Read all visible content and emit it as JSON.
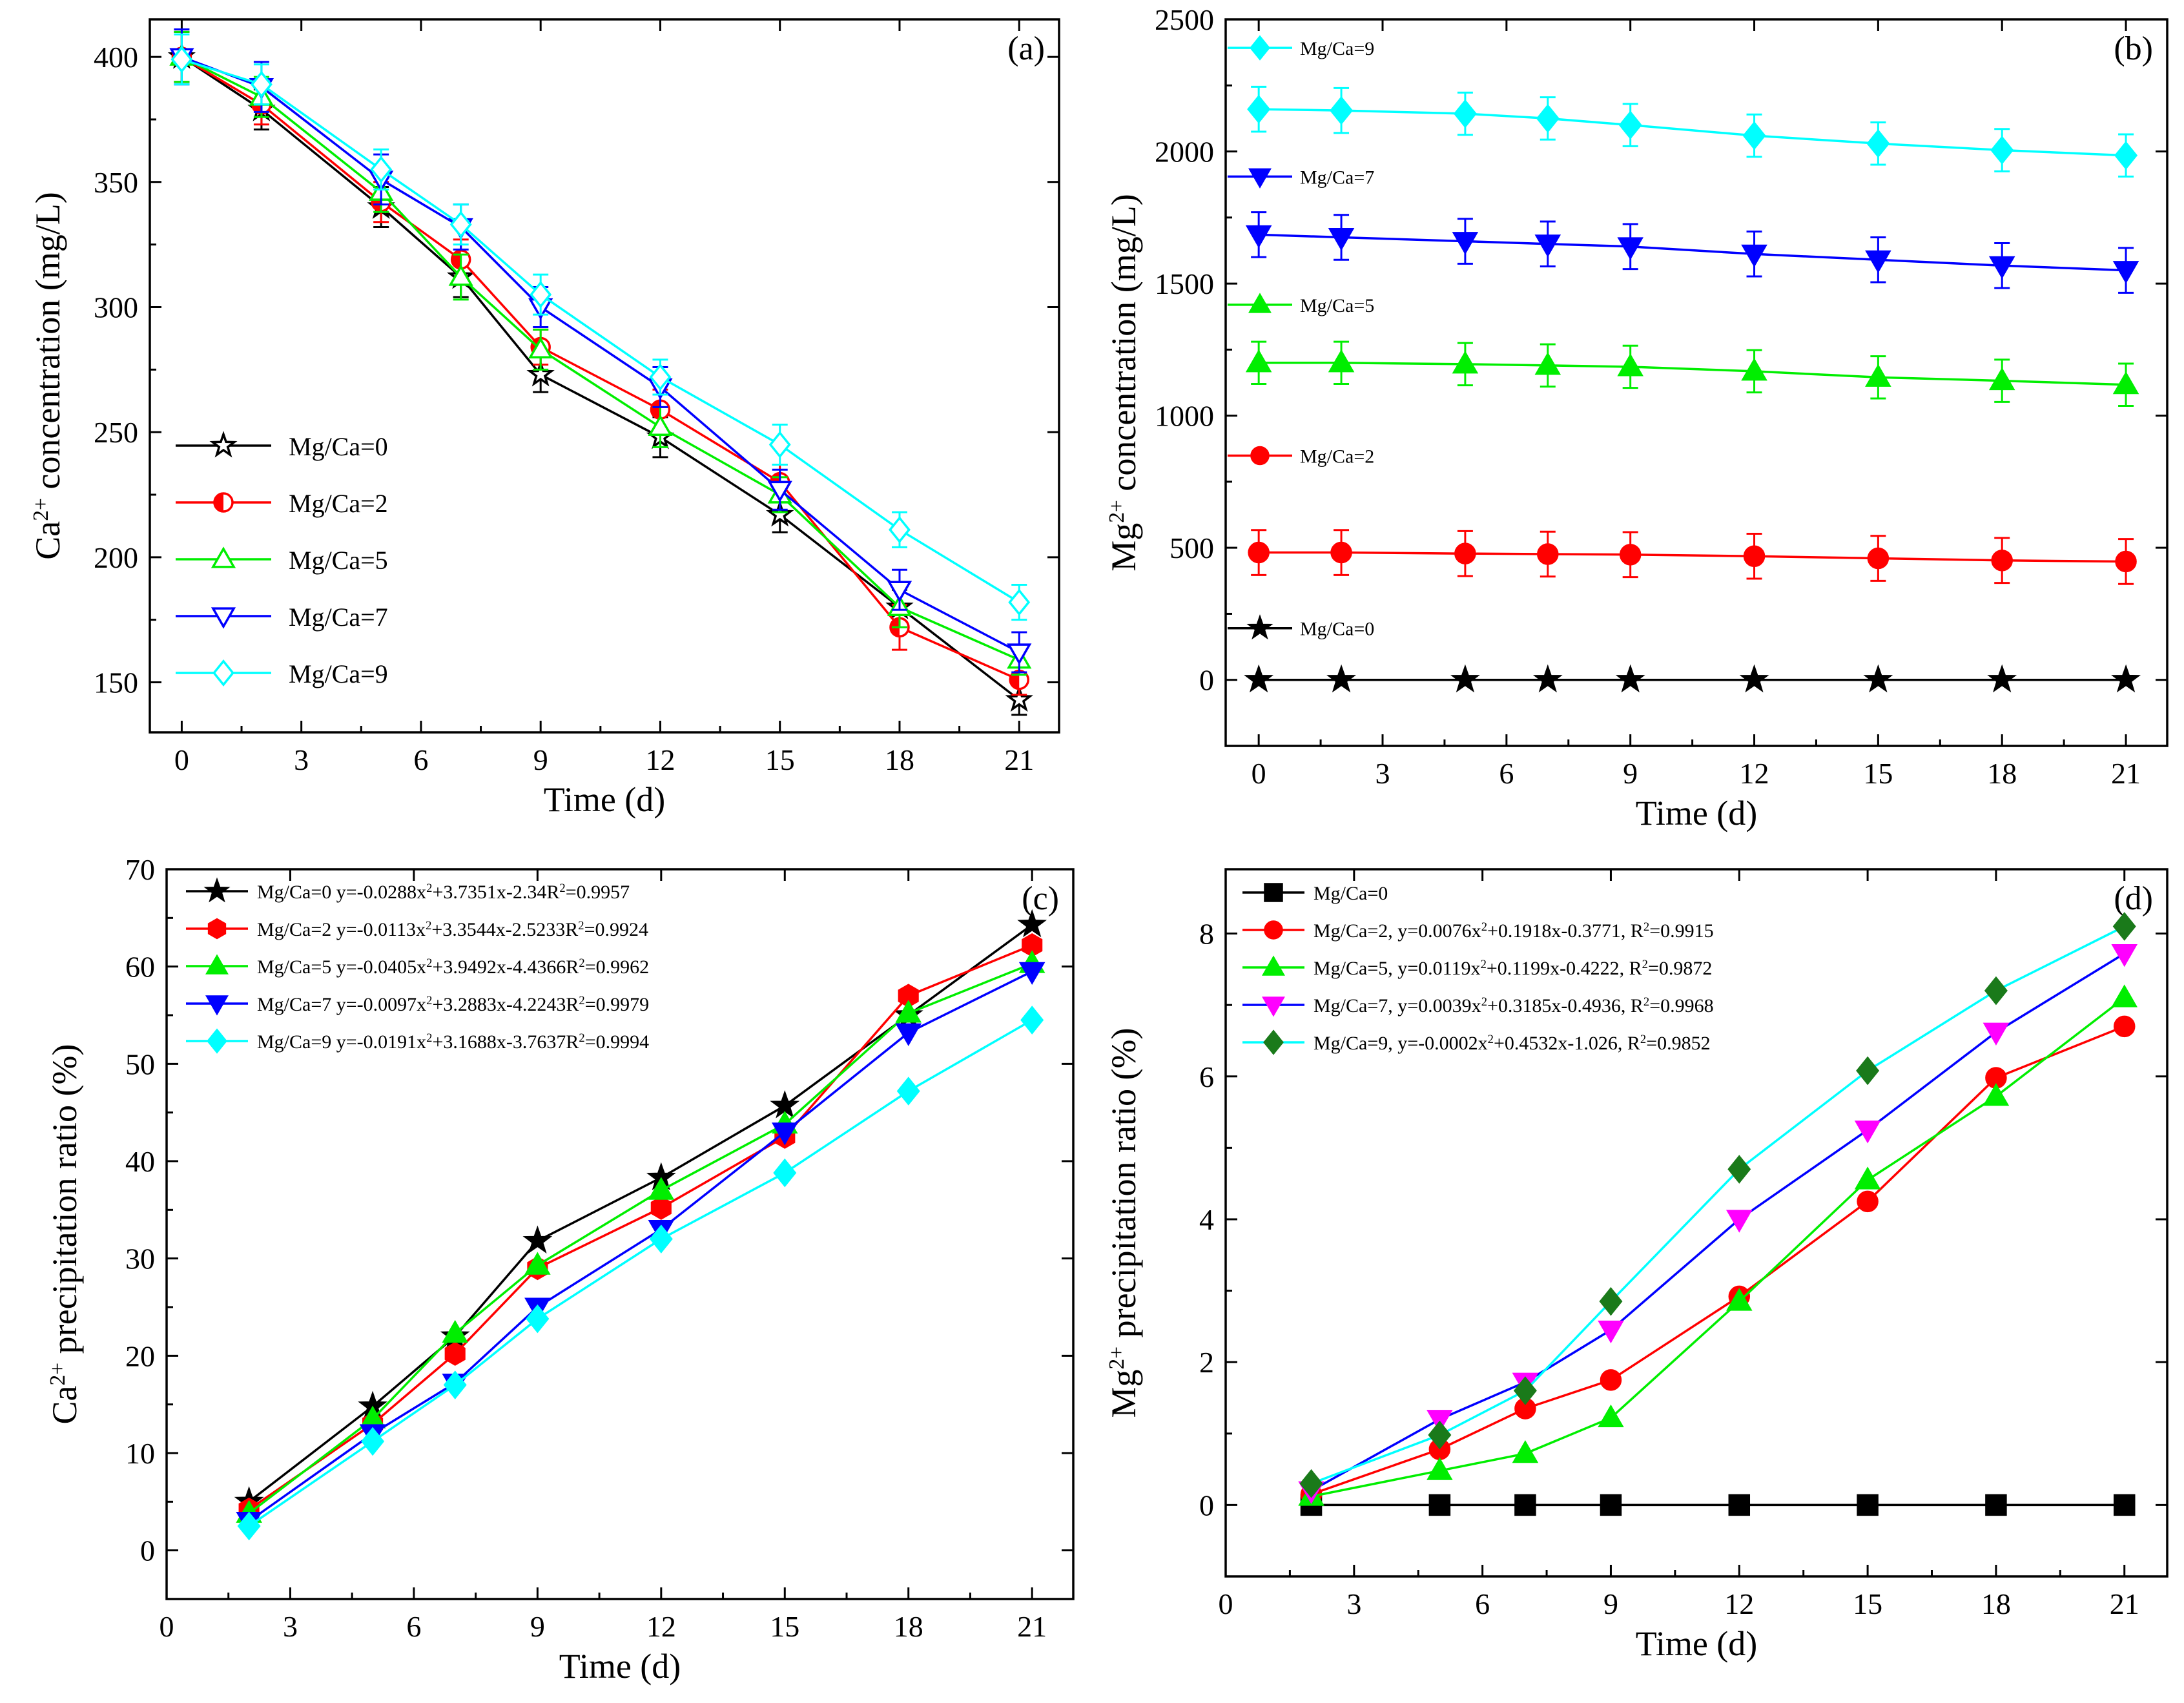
{
  "figure": {
    "colors": {
      "mg0": "#000000",
      "mg2": "#ff0000",
      "mg5": "#00ee00",
      "mg7": "#0000ff",
      "mg9": "#00ffff",
      "mg9_marker_d": "#1a7a1a",
      "mg7_marker_d": "#ff00ff"
    }
  },
  "chart_data": [
    {
      "panel": "a",
      "tag": "(a)",
      "type": "line",
      "xlabel": "Time (d)",
      "ylabel_main": "Ca",
      "ylabel_sup": "2+",
      "ylabel_rest": " concentration (mg/L)",
      "xlim": [
        -0.8,
        22
      ],
      "ylim": [
        130,
        415
      ],
      "xticks": [
        0,
        3,
        6,
        9,
        12,
        15,
        18,
        21
      ],
      "yticks": [
        150,
        200,
        250,
        300,
        350,
        400
      ],
      "legend": [
        "Mg/Ca=0",
        "Mg/Ca=2",
        "Mg/Ca=5",
        "Mg/Ca=7",
        "Mg/Ca=9"
      ],
      "x": [
        0,
        2,
        5,
        7,
        9,
        12,
        15,
        18,
        21
      ],
      "series": [
        {
          "name": "Mg/Ca=0",
          "marker": "star-open",
          "values": [
            400,
            379,
            340,
            312,
            273,
            248,
            217,
            180,
            143
          ],
          "err": [
            10,
            8,
            8,
            8,
            7,
            8,
            7,
            7,
            6
          ]
        },
        {
          "name": "Mg/Ca=2",
          "marker": "circle-half",
          "values": [
            400,
            381,
            342,
            319,
            284,
            259,
            230,
            172,
            151
          ],
          "err": [
            10,
            8,
            8,
            8,
            7,
            8,
            7,
            9,
            6
          ]
        },
        {
          "name": "Mg/Ca=5",
          "marker": "triangle-up-open",
          "values": [
            400,
            384,
            346,
            312,
            283,
            252,
            225,
            180,
            159
          ],
          "err": [
            10,
            8,
            8,
            9,
            8,
            8,
            7,
            8,
            6
          ]
        },
        {
          "name": "Mg/Ca=7",
          "marker": "triangle-down-open",
          "values": [
            400,
            388,
            351,
            332,
            300,
            268,
            227,
            187,
            162
          ],
          "err": [
            11,
            10,
            10,
            9,
            8,
            8,
            8,
            8,
            8
          ]
        },
        {
          "name": "Mg/Ca=9",
          "marker": "diamond-open",
          "values": [
            399,
            389,
            355,
            333,
            305,
            272,
            245,
            211,
            182
          ],
          "err": [
            10,
            8,
            8,
            8,
            8,
            7,
            8,
            7,
            7
          ]
        }
      ]
    },
    {
      "panel": "b",
      "tag": "(b)",
      "type": "line",
      "xlabel": "Time (d)",
      "ylabel_main": "Mg",
      "ylabel_sup": "2+",
      "ylabel_rest": " concentration (mg/L)",
      "xlim": [
        -0.8,
        22
      ],
      "ylim": [
        -250,
        2500
      ],
      "xticks": [
        0,
        3,
        6,
        9,
        12,
        15,
        18,
        21
      ],
      "yticks": [
        0,
        500,
        1000,
        1500,
        2000,
        2500
      ],
      "x": [
        0,
        2,
        5,
        7,
        9,
        12,
        15,
        18,
        21
      ],
      "series": [
        {
          "name": "Mg/Ca=9",
          "marker": "diamond-filled",
          "values": [
            2160,
            2155,
            2143,
            2125,
            2100,
            2060,
            2030,
            2005,
            1985
          ],
          "err": [
            85,
            85,
            80,
            80,
            80,
            80,
            80,
            80,
            80
          ]
        },
        {
          "name": "Mg/Ca=7",
          "marker": "triangle-down-filled",
          "values": [
            1685,
            1675,
            1660,
            1650,
            1640,
            1612,
            1590,
            1568,
            1550
          ],
          "err": [
            85,
            85,
            85,
            85,
            85,
            85,
            85,
            85,
            85
          ]
        },
        {
          "name": "Mg/Ca=5",
          "marker": "triangle-up-filled",
          "values": [
            1200,
            1200,
            1195,
            1190,
            1185,
            1168,
            1145,
            1132,
            1117
          ],
          "err": [
            80,
            80,
            80,
            80,
            80,
            80,
            80,
            80,
            80
          ]
        },
        {
          "name": "Mg/Ca=2",
          "marker": "circle-filled",
          "values": [
            482,
            482,
            478,
            476,
            474,
            468,
            460,
            452,
            448
          ],
          "err": [
            85,
            85,
            85,
            85,
            85,
            85,
            85,
            85,
            85
          ]
        },
        {
          "name": "Mg/Ca=0",
          "marker": "star-filled",
          "values": [
            0,
            0,
            0,
            0,
            0,
            0,
            0,
            0,
            0
          ],
          "err": [
            0,
            0,
            0,
            0,
            0,
            0,
            0,
            0,
            0
          ]
        }
      ]
    },
    {
      "panel": "c",
      "tag": "(c)",
      "type": "line",
      "xlabel": "Time (d)",
      "ylabel_main": "Ca",
      "ylabel_sup": "2+",
      "ylabel_rest": " precipitation ratio (%)",
      "xlim": [
        0,
        22
      ],
      "ylim": [
        -5,
        70
      ],
      "xticks": [
        0,
        3,
        6,
        9,
        12,
        15,
        18,
        21
      ],
      "yticks": [
        0,
        10,
        20,
        30,
        40,
        50,
        60,
        70
      ],
      "x": [
        2,
        5,
        7,
        9,
        12,
        15,
        18,
        21
      ],
      "series": [
        {
          "name": "Mg/Ca=0",
          "marker": "star-filled",
          "label_pre": "Mg/Ca=0 y=-0.0288x",
          "label_mid": "+3.7351x-2.34",
          "label_r": "R",
          "label_post": "=0.9957",
          "values": [
            5.0,
            14.8,
            22.0,
            31.8,
            38.3,
            45.7,
            55.0,
            64.3
          ]
        },
        {
          "name": "Mg/Ca=2",
          "marker": "hexagon-filled",
          "label_pre": "Mg/Ca=2 y=-0.0113x",
          "label_mid": "+3.3544x-2.5233",
          "label_r": "R",
          "label_post": "=0.9924",
          "values": [
            4.2,
            13.0,
            20.2,
            29.0,
            35.2,
            42.5,
            57.0,
            62.2
          ]
        },
        {
          "name": "Mg/Ca=5",
          "marker": "triangle-up-filled",
          "label_pre": "Mg/Ca=5 y=-0.0405x",
          "label_mid": "+3.9492x-4.4366",
          "label_r": "R",
          "label_post": "=0.9962",
          "values": [
            3.8,
            13.5,
            22.3,
            29.3,
            37.0,
            43.8,
            55.2,
            60.3
          ]
        },
        {
          "name": "Mg/Ca=7",
          "marker": "triangle-down-filled",
          "label_pre": "Mg/Ca=7 y=-0.0097x",
          "label_mid": "+3.2883x-4.2243",
          "label_r": "R",
          "label_post": "=0.9979",
          "values": [
            3.0,
            12.0,
            17.2,
            25.0,
            33.0,
            43.0,
            53.2,
            59.5
          ]
        },
        {
          "name": "Mg/Ca=9",
          "marker": "diamond-filled",
          "label_pre": "Mg/Ca=9 y=-0.0191x",
          "label_mid": "+3.1688x-3.7637",
          "label_r": "R",
          "label_post": "=0.9994",
          "values": [
            2.5,
            11.2,
            17.0,
            23.8,
            32.0,
            38.8,
            47.2,
            54.5
          ]
        }
      ]
    },
    {
      "panel": "d",
      "tag": "(d)",
      "type": "line",
      "xlabel": "Time (d)",
      "ylabel_main": "Mg",
      "ylabel_sup": "2+",
      "ylabel_rest": " precipitation ratio (%)",
      "xlim": [
        0,
        22
      ],
      "ylim": [
        -1,
        8.9
      ],
      "xticks": [
        0,
        3,
        6,
        9,
        12,
        15,
        18,
        21
      ],
      "yticks": [
        0,
        2,
        4,
        6,
        8
      ],
      "x": [
        2,
        5,
        7,
        9,
        12,
        15,
        18,
        21
      ],
      "series": [
        {
          "name": "Mg/Ca=0",
          "marker": "square-filled",
          "label_pre": "Mg/Ca=0",
          "label_mid": "",
          "label_r": "",
          "label_post": "",
          "values": [
            0,
            0,
            0,
            0,
            0,
            0,
            0,
            0
          ]
        },
        {
          "name": "Mg/Ca=2",
          "marker": "circle-filled",
          "label_pre": "Mg/Ca=2, y=0.0076x",
          "label_mid": "+0.1918x-0.3771, ",
          "label_r": "R",
          "label_post": "=0.9915",
          "values": [
            0.15,
            0.78,
            1.35,
            1.75,
            2.92,
            4.25,
            5.98,
            6.7
          ]
        },
        {
          "name": "Mg/Ca=5",
          "marker": "triangle-up-filled",
          "label_pre": "Mg/Ca=5, y=0.0119x",
          "label_mid": "+0.1199x-0.4222, ",
          "label_r": "R",
          "label_post": "=0.9872",
          "values": [
            0.12,
            0.48,
            0.72,
            1.22,
            2.85,
            4.55,
            5.72,
            7.1
          ]
        },
        {
          "name": "Mg/Ca=7",
          "marker": "triangle-down-filled",
          "label_pre": "Mg/Ca=7, y=0.0039x",
          "label_mid": "+0.3185x-0.4936, ",
          "label_r": "R",
          "label_post": "=0.9968",
          "values": [
            0.2,
            1.2,
            1.72,
            2.45,
            4.0,
            5.25,
            6.62,
            7.72
          ]
        },
        {
          "name": "Mg/Ca=9",
          "marker": "diamond-filled",
          "label_pre": "Mg/Ca=9, y=-0.0002x",
          "label_mid": "+0.4532x-1.026, ",
          "label_r": "R",
          "label_post": "=0.9852",
          "values": [
            0.3,
            0.98,
            1.6,
            2.85,
            4.7,
            6.08,
            7.2,
            8.1
          ]
        }
      ]
    }
  ]
}
